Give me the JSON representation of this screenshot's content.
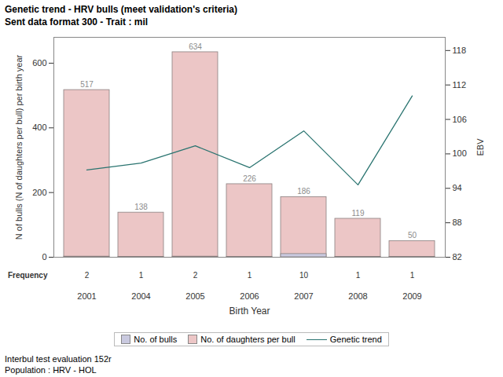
{
  "chart_data": {
    "type": "bar",
    "title": "Genetic trend - HRV bulls (meet validation's criteria)",
    "subtitle": "Sent data format 300 - Trait : mil",
    "x_label": "Birth Year",
    "y_label": "N of bulls (N of daughters per bull) per birth year",
    "y2_label": "EBV",
    "categories": [
      "2001",
      "2004",
      "2005",
      "2006",
      "2007",
      "2008",
      "2009"
    ],
    "series": [
      {
        "name": "No. of bulls",
        "type": "bar",
        "color": "#c9c9df",
        "values": [
          2,
          1,
          2,
          1,
          10,
          1,
          1
        ]
      },
      {
        "name": "No. of daughters per bull",
        "type": "bar",
        "color": "#ecc6c6",
        "values": [
          517,
          138,
          634,
          226,
          186,
          119,
          50
        ],
        "data_labels": true
      },
      {
        "name": "Genetic trend",
        "type": "line",
        "axis": "y2",
        "color": "#2a7470",
        "values": [
          97.2,
          98.4,
          101.4,
          97.6,
          104.0,
          94.6,
          110.1
        ]
      }
    ],
    "ylim": [
      0,
      680
    ],
    "yticks": [
      0,
      200,
      400,
      600
    ],
    "y2lim": [
      82,
      120.3
    ],
    "y2ticks": [
      82,
      88,
      94,
      100,
      106,
      112,
      118
    ],
    "table_row": {
      "label": "Frequency",
      "values": [
        2,
        1,
        2,
        1,
        10,
        1,
        1
      ]
    },
    "legend": "bottom",
    "caption": [
      "Interbul test evaluation 152r",
      "Population : HRV - HOL"
    ]
  }
}
